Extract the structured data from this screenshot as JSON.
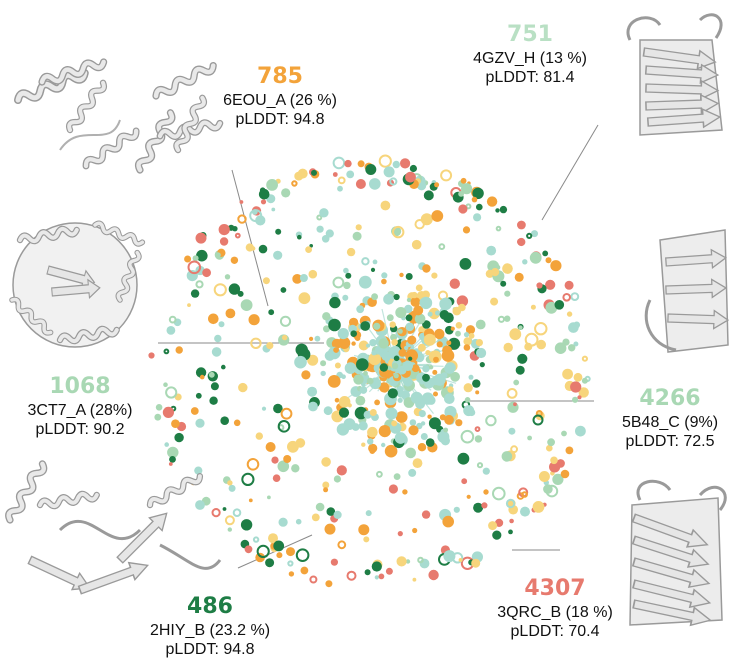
{
  "colors": {
    "green": "#1e7d45",
    "light_green": "#a9d8b4",
    "mint": "#a7dbd0",
    "orange": "#f3a33a",
    "yellow": "#f7d57c",
    "red": "#e77a6e",
    "structure_gray": "#dcdcdc"
  },
  "clusters": [
    {
      "key": "785",
      "id": "785",
      "protein": "6EOU_A (26 %)",
      "plddt": "pLDDT: 94.8",
      "color": "#f3a33a",
      "structure": "helical-bundle"
    },
    {
      "key": "751",
      "id": "751",
      "protein": "4GZV_H (13 %)",
      "plddt": "pLDDT: 81.4",
      "color": "#b9e0c4",
      "structure": "beta-barrel"
    },
    {
      "key": "1068",
      "id": "1068",
      "protein": "3CT7_A (28%)",
      "plddt": "pLDDT: 90.2",
      "color": "#a9d8b4",
      "structure": "tim-barrel"
    },
    {
      "key": "4266",
      "id": "4266",
      "protein": "5B48_C (9%)",
      "plddt": "pLDDT: 72.5",
      "color": "#a9d8b4",
      "structure": "small-beta-domain"
    },
    {
      "key": "486",
      "id": "486",
      "protein": "2HIY_B (23.2 %)",
      "plddt": "pLDDT: 94.8",
      "color": "#1e7d45",
      "structure": "alpha-beta-fold"
    },
    {
      "key": "4307",
      "id": "4307",
      "protein": "3QRC_B (18 %)",
      "plddt": "pLDDT: 70.4",
      "color": "#e77a6e",
      "structure": "beta-barrel"
    }
  ]
}
